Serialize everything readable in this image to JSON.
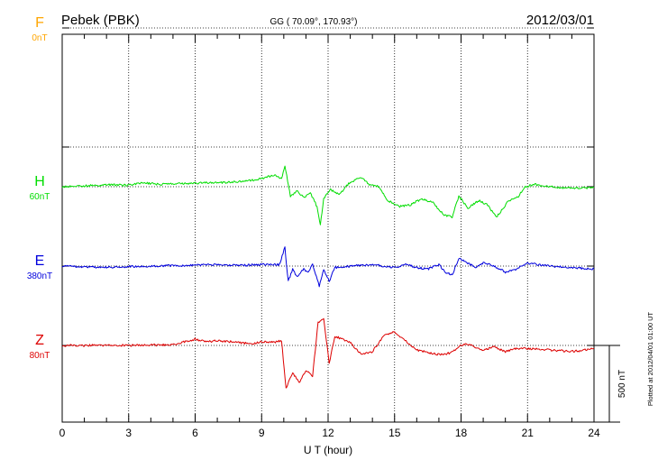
{
  "header": {
    "station": "Pebek (PBK)",
    "coords": "GG ( 70.09°, 170.93°)",
    "date": "2012/03/01"
  },
  "footer": {
    "plotted": "Plotted at 2012/04/01 01:00 UT"
  },
  "chart_data": {
    "type": "line",
    "xlabel": "U T (hour)",
    "xlim": [
      0,
      24
    ],
    "xticks": [
      0,
      3,
      6,
      9,
      12,
      15,
      18,
      21,
      24
    ],
    "grid": true,
    "scale_bar": {
      "value": 500,
      "label": "500 nT"
    },
    "panel_dividers": [
      5.5,
      2.5
    ],
    "series": [
      {
        "name": "F",
        "offset_label": "0nT",
        "color": "#ffa500",
        "baseline": 4.0,
        "values": []
      },
      {
        "name": "H",
        "offset_label": "60nT",
        "color": "#00dd00",
        "baseline": 2.0,
        "points": [
          [
            0,
            0
          ],
          [
            1,
            5
          ],
          [
            2,
            12
          ],
          [
            3,
            10
          ],
          [
            3.6,
            25
          ],
          [
            4.5,
            15
          ],
          [
            5.5,
            20
          ],
          [
            6.5,
            25
          ],
          [
            7.5,
            28
          ],
          [
            8.5,
            40
          ],
          [
            9.2,
            60
          ],
          [
            9.6,
            80
          ],
          [
            9.9,
            50
          ],
          [
            10.05,
            140
          ],
          [
            10.3,
            -60
          ],
          [
            10.6,
            -30
          ],
          [
            10.9,
            -70
          ],
          [
            11.2,
            -40
          ],
          [
            11.5,
            -130
          ],
          [
            11.65,
            -250
          ],
          [
            11.8,
            -80
          ],
          [
            12.1,
            -20
          ],
          [
            12.5,
            -50
          ],
          [
            13,
            30
          ],
          [
            13.5,
            60
          ],
          [
            13.9,
            10
          ],
          [
            14.3,
            0
          ],
          [
            14.7,
            -90
          ],
          [
            15.2,
            -130
          ],
          [
            15.7,
            -120
          ],
          [
            16.2,
            -80
          ],
          [
            16.7,
            -100
          ],
          [
            17.2,
            -180
          ],
          [
            17.6,
            -200
          ],
          [
            17.9,
            -60
          ],
          [
            18.3,
            -140
          ],
          [
            18.8,
            -90
          ],
          [
            19.2,
            -120
          ],
          [
            19.6,
            -200
          ],
          [
            20.1,
            -100
          ],
          [
            20.6,
            -60
          ],
          [
            20.9,
            0
          ],
          [
            21.3,
            15
          ],
          [
            22,
            0
          ],
          [
            23,
            -10
          ],
          [
            24,
            -5
          ]
        ]
      },
      {
        "name": "E",
        "offset_label": "380nT",
        "color": "#0000dd",
        "baseline": 1.0,
        "points": [
          [
            0,
            0
          ],
          [
            2,
            -8
          ],
          [
            4,
            0
          ],
          [
            6,
            5
          ],
          [
            7,
            10
          ],
          [
            8,
            3
          ],
          [
            9,
            10
          ],
          [
            9.8,
            10
          ],
          [
            10.05,
            120
          ],
          [
            10.2,
            -100
          ],
          [
            10.4,
            -20
          ],
          [
            10.6,
            -70
          ],
          [
            10.9,
            -20
          ],
          [
            11.1,
            -40
          ],
          [
            11.3,
            10
          ],
          [
            11.6,
            -130
          ],
          [
            11.8,
            -20
          ],
          [
            12.05,
            -100
          ],
          [
            12.3,
            -10
          ],
          [
            13,
            0
          ],
          [
            14,
            10
          ],
          [
            15,
            -10
          ],
          [
            15.5,
            10
          ],
          [
            16,
            -10
          ],
          [
            16.5,
            -20
          ],
          [
            17,
            10
          ],
          [
            17.3,
            -40
          ],
          [
            17.6,
            -60
          ],
          [
            17.9,
            50
          ],
          [
            18.3,
            20
          ],
          [
            18.7,
            -10
          ],
          [
            19,
            20
          ],
          [
            19.5,
            0
          ],
          [
            20,
            -40
          ],
          [
            20.5,
            -20
          ],
          [
            21,
            20
          ],
          [
            22,
            0
          ],
          [
            23,
            -10
          ],
          [
            24,
            -20
          ]
        ]
      },
      {
        "name": "Z",
        "offset_label": "80nT",
        "color": "#dd0000",
        "baseline": 0.0,
        "points": [
          [
            0,
            0
          ],
          [
            3,
            0
          ],
          [
            5,
            5
          ],
          [
            6,
            40
          ],
          [
            6.5,
            25
          ],
          [
            7,
            30
          ],
          [
            8,
            20
          ],
          [
            8.5,
            10
          ],
          [
            9,
            25
          ],
          [
            9.5,
            20
          ],
          [
            9.9,
            30
          ],
          [
            10.1,
            -280
          ],
          [
            10.4,
            -180
          ],
          [
            10.7,
            -240
          ],
          [
            11,
            -160
          ],
          [
            11.3,
            -200
          ],
          [
            11.55,
            150
          ],
          [
            11.8,
            180
          ],
          [
            12.05,
            -120
          ],
          [
            12.3,
            60
          ],
          [
            13,
            20
          ],
          [
            13.5,
            -60
          ],
          [
            14,
            -40
          ],
          [
            14.5,
            60
          ],
          [
            15,
            90
          ],
          [
            15.4,
            40
          ],
          [
            16,
            -30
          ],
          [
            17,
            -60
          ],
          [
            17.5,
            -50
          ],
          [
            18,
            0
          ],
          [
            18.3,
            10
          ],
          [
            19,
            -30
          ],
          [
            19.5,
            -10
          ],
          [
            20,
            -40
          ],
          [
            20.5,
            -20
          ],
          [
            21,
            -20
          ],
          [
            22,
            -30
          ],
          [
            23,
            -40
          ],
          [
            23.6,
            -30
          ],
          [
            24,
            -20
          ]
        ]
      }
    ]
  }
}
